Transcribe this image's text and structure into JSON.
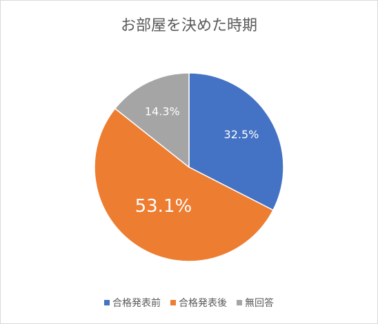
{
  "chart_data": {
    "type": "pie",
    "title": "お部屋を決めた時期",
    "categories": [
      "合格発表前",
      "合格発表後",
      "無回答"
    ],
    "values": [
      32.5,
      53.1,
      14.3
    ],
    "value_labels": [
      "32.5%",
      "53.1%",
      "14.3%"
    ],
    "colors": [
      "#4472c4",
      "#ed7d31",
      "#a5a5a5"
    ],
    "legend": "bottom"
  }
}
